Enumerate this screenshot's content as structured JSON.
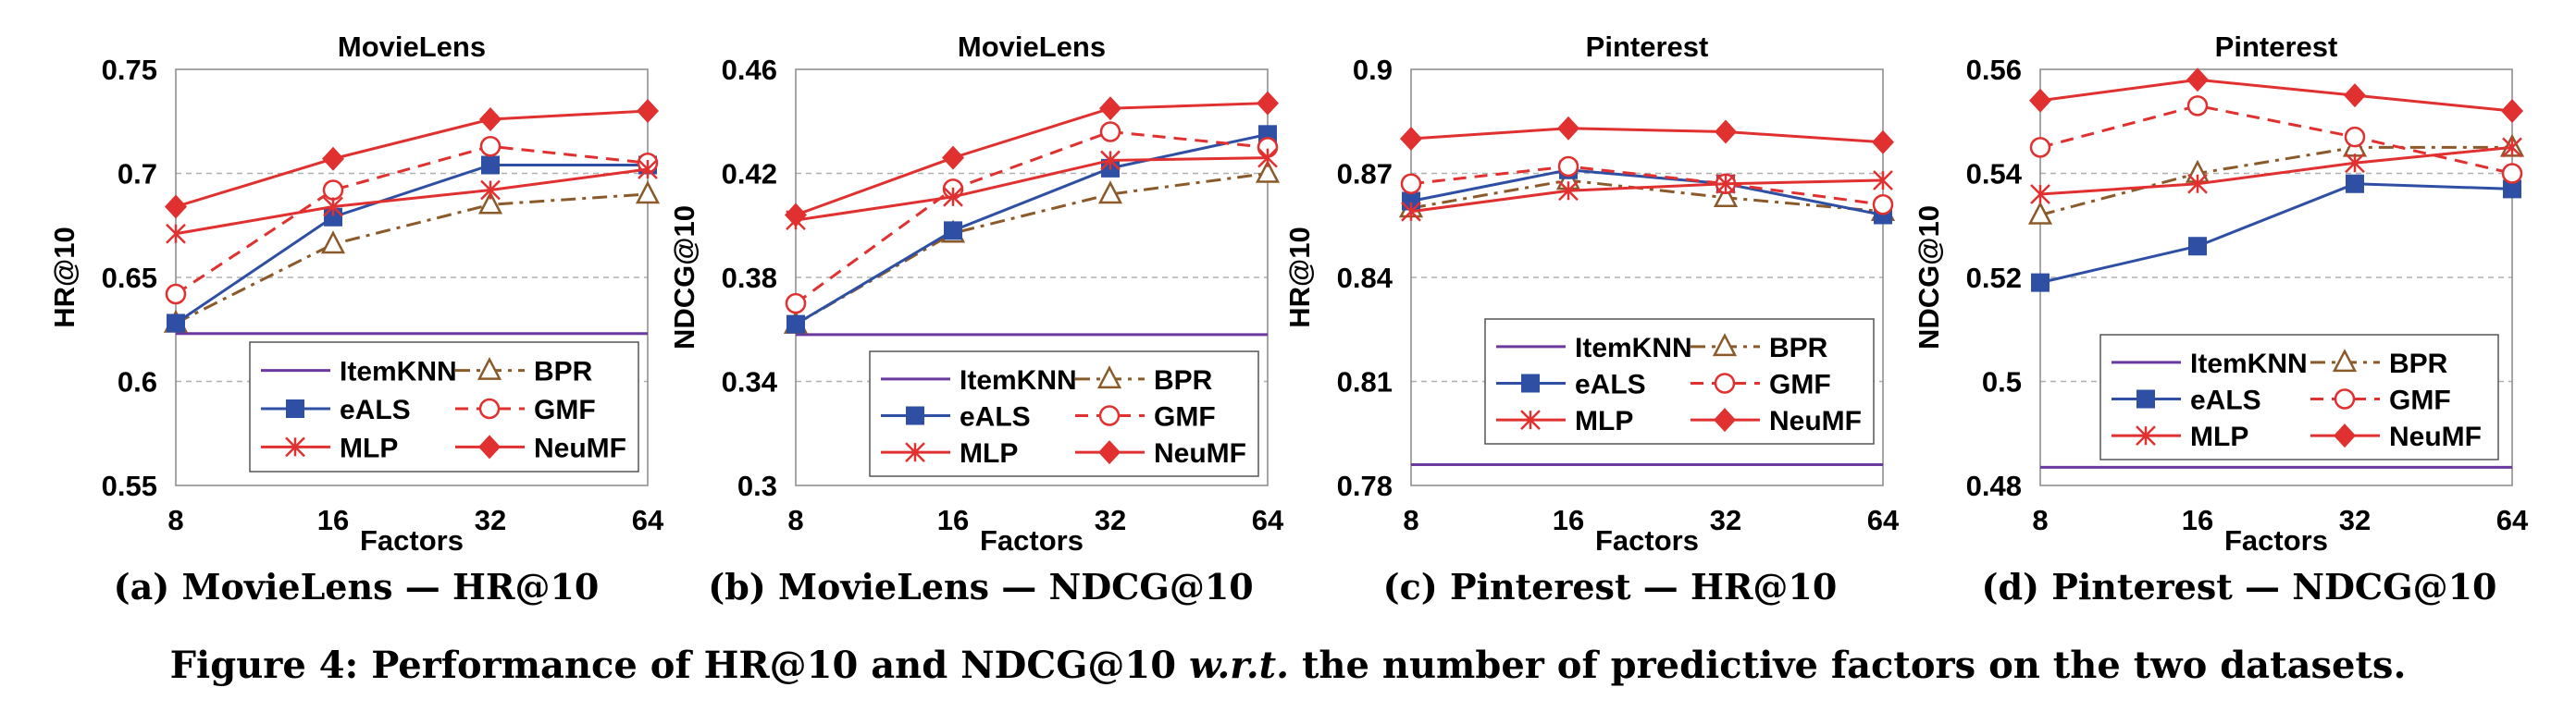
{
  "chart_data": [
    {
      "type": "line",
      "title": "MovieLens",
      "xlabel": "Factors",
      "ylabel": "HR@10",
      "categories": [
        "8",
        "16",
        "32",
        "64"
      ],
      "ylim": [
        0.55,
        0.75
      ],
      "yticks": [
        "0.55",
        "0.6",
        "0.65",
        "0.7",
        "0.75"
      ],
      "baseline": {
        "name": "ItemKNN",
        "value": 0.623
      },
      "series": [
        {
          "name": "BPR",
          "values": [
            0.628,
            0.666,
            0.685,
            0.69
          ]
        },
        {
          "name": "eALS",
          "values": [
            0.628,
            0.679,
            0.704,
            0.704
          ]
        },
        {
          "name": "GMF",
          "values": [
            0.642,
            0.692,
            0.713,
            0.705
          ]
        },
        {
          "name": "MLP",
          "values": [
            0.671,
            0.684,
            0.692,
            0.702
          ]
        },
        {
          "name": "NeuMF",
          "values": [
            0.684,
            0.707,
            0.726,
            0.73
          ]
        }
      ],
      "caption": "(a) MovieLens — HR@10"
    },
    {
      "type": "line",
      "title": "MovieLens",
      "xlabel": "Factors",
      "ylabel": "NDCG@10",
      "categories": [
        "8",
        "16",
        "32",
        "64"
      ],
      "ylim": [
        0.3,
        0.46
      ],
      "yticks": [
        "0.3",
        "0.34",
        "0.38",
        "0.42",
        "0.46"
      ],
      "baseline": {
        "name": "ItemKNN",
        "value": 0.358
      },
      "series": [
        {
          "name": "BPR",
          "values": [
            0.362,
            0.397,
            0.412,
            0.42
          ]
        },
        {
          "name": "eALS",
          "values": [
            0.362,
            0.398,
            0.422,
            0.435
          ]
        },
        {
          "name": "GMF",
          "values": [
            0.37,
            0.414,
            0.436,
            0.43
          ]
        },
        {
          "name": "MLP",
          "values": [
            0.402,
            0.411,
            0.425,
            0.426
          ]
        },
        {
          "name": "NeuMF",
          "values": [
            0.404,
            0.426,
            0.445,
            0.447
          ]
        }
      ],
      "caption": "(b) MovieLens — NDCG@10"
    },
    {
      "type": "line",
      "title": "Pinterest",
      "xlabel": "Factors",
      "ylabel": "HR@10",
      "categories": [
        "8",
        "16",
        "32",
        "64"
      ],
      "ylim": [
        0.78,
        0.9
      ],
      "yticks": [
        "0.78",
        "0.81",
        "0.84",
        "0.87",
        "0.9"
      ],
      "baseline": {
        "name": "ItemKNN",
        "value": 0.786
      },
      "series": [
        {
          "name": "BPR",
          "values": [
            0.86,
            0.868,
            0.863,
            0.859
          ]
        },
        {
          "name": "eALS",
          "values": [
            0.862,
            0.871,
            0.867,
            0.858
          ]
        },
        {
          "name": "GMF",
          "values": [
            0.867,
            0.872,
            0.867,
            0.861
          ]
        },
        {
          "name": "MLP",
          "values": [
            0.859,
            0.865,
            0.867,
            0.868
          ]
        },
        {
          "name": "NeuMF",
          "values": [
            0.88,
            0.883,
            0.882,
            0.879
          ]
        }
      ],
      "caption": "(c) Pinterest — HR@10"
    },
    {
      "type": "line",
      "title": "Pinterest",
      "xlabel": "Factors",
      "ylabel": "NDCG@10",
      "categories": [
        "8",
        "16",
        "32",
        "64"
      ],
      "ylim": [
        0.48,
        0.56
      ],
      "yticks": [
        "0.48",
        "0.5",
        "0.52",
        "0.54",
        "0.56"
      ],
      "baseline": {
        "name": "ItemKNN",
        "value": 0.4835
      },
      "series": [
        {
          "name": "BPR",
          "values": [
            0.532,
            0.54,
            0.545,
            0.545
          ]
        },
        {
          "name": "eALS",
          "values": [
            0.519,
            0.526,
            0.538,
            0.537
          ]
        },
        {
          "name": "GMF",
          "values": [
            0.545,
            0.553,
            0.547,
            0.54
          ]
        },
        {
          "name": "MLP",
          "values": [
            0.536,
            0.538,
            0.542,
            0.545
          ]
        },
        {
          "name": "NeuMF",
          "values": [
            0.554,
            0.558,
            0.555,
            0.552
          ]
        }
      ],
      "caption": "(d) Pinterest — NDCG@10"
    }
  ],
  "series_styles": {
    "ItemKNN": {
      "color": "#6a3aa0",
      "dash": "none",
      "marker": "none"
    },
    "BPR": {
      "color": "#8a5a2b",
      "dash": "dashdot",
      "marker": "triangle-open"
    },
    "eALS": {
      "color": "#2e4fa3",
      "dash": "none",
      "marker": "square-filled"
    },
    "GMF": {
      "color": "#e03030",
      "dash": "dashed",
      "marker": "circle-open"
    },
    "MLP": {
      "color": "#e03030",
      "dash": "none",
      "marker": "star"
    },
    "NeuMF": {
      "color": "#e03030",
      "dash": "none",
      "marker": "diamond-filled"
    }
  },
  "figure_caption": {
    "prefix": "Figure 4: Performance of HR@10 and NDCG@10 ",
    "italic": "w.r.t.",
    "suffix": " the number of predictive factors on the two datasets."
  }
}
